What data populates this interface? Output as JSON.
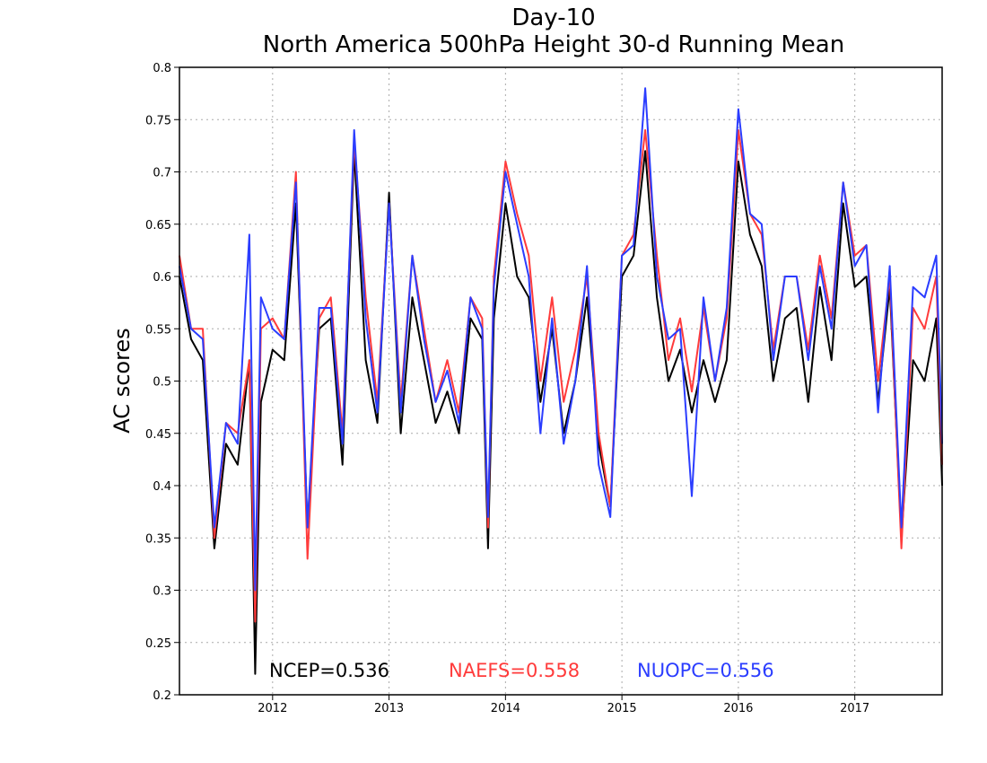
{
  "chart_data": {
    "type": "line",
    "title": "Day-10",
    "subtitle": "North America 500hPa Height 30-d Running Mean",
    "xlabel": "",
    "ylabel": "AC scores",
    "xlim": [
      2011.2,
      2017.75
    ],
    "ylim": [
      0.2,
      0.8
    ],
    "x_ticks": [
      2012,
      2013,
      2014,
      2015,
      2016,
      2017
    ],
    "x_tick_labels": [
      "2012",
      "2013",
      "2014",
      "2015",
      "2016",
      "2017"
    ],
    "y_ticks": [
      0.2,
      0.25,
      0.3,
      0.35,
      0.4,
      0.45,
      0.5,
      0.55,
      0.6,
      0.65,
      0.7,
      0.75,
      0.8
    ],
    "y_tick_labels": [
      "0.2",
      "0.25",
      "0.3",
      "0.35",
      "0.4",
      "0.45",
      "0.5",
      "0.55",
      "0.6",
      "0.65",
      "0.7",
      "0.75",
      "0.8"
    ],
    "grid": true,
    "x": [
      2011.2,
      2011.3,
      2011.4,
      2011.5,
      2011.6,
      2011.7,
      2011.8,
      2011.85,
      2011.9,
      2012.0,
      2012.1,
      2012.2,
      2012.3,
      2012.4,
      2012.5,
      2012.6,
      2012.7,
      2012.8,
      2012.9,
      2013.0,
      2013.1,
      2013.2,
      2013.3,
      2013.4,
      2013.5,
      2013.6,
      2013.7,
      2013.8,
      2013.85,
      2013.9,
      2014.0,
      2014.1,
      2014.2,
      2014.3,
      2014.4,
      2014.5,
      2014.6,
      2014.7,
      2014.8,
      2014.9,
      2015.0,
      2015.1,
      2015.2,
      2015.3,
      2015.4,
      2015.5,
      2015.6,
      2015.7,
      2015.8,
      2015.9,
      2016.0,
      2016.1,
      2016.2,
      2016.3,
      2016.4,
      2016.5,
      2016.6,
      2016.7,
      2016.8,
      2016.9,
      2017.0,
      2017.1,
      2017.2,
      2017.3,
      2017.4,
      2017.5,
      2017.6,
      2017.7,
      2017.75
    ],
    "series": [
      {
        "name": "NCEP",
        "color": "#000000",
        "values": [
          0.6,
          0.54,
          0.52,
          0.34,
          0.44,
          0.42,
          0.52,
          0.22,
          0.48,
          0.53,
          0.52,
          0.67,
          0.36,
          0.55,
          0.56,
          0.42,
          0.72,
          0.52,
          0.46,
          0.68,
          0.45,
          0.58,
          0.52,
          0.46,
          0.49,
          0.45,
          0.56,
          0.54,
          0.34,
          0.56,
          0.67,
          0.6,
          0.58,
          0.48,
          0.55,
          0.45,
          0.5,
          0.58,
          0.44,
          0.38,
          0.6,
          0.62,
          0.72,
          0.58,
          0.5,
          0.53,
          0.47,
          0.52,
          0.48,
          0.52,
          0.71,
          0.64,
          0.61,
          0.5,
          0.56,
          0.57,
          0.48,
          0.59,
          0.52,
          0.67,
          0.59,
          0.6,
          0.48,
          0.59,
          0.35,
          0.52,
          0.5,
          0.56,
          0.4
        ]
      },
      {
        "name": "NAEFS",
        "color": "#ff3b3b",
        "values": [
          0.62,
          0.55,
          0.55,
          0.35,
          0.46,
          0.45,
          0.52,
          0.27,
          0.55,
          0.56,
          0.54,
          0.7,
          0.33,
          0.56,
          0.58,
          0.45,
          0.73,
          0.58,
          0.48,
          0.67,
          0.48,
          0.62,
          0.55,
          0.48,
          0.52,
          0.47,
          0.58,
          0.56,
          0.36,
          0.6,
          0.71,
          0.66,
          0.62,
          0.5,
          0.58,
          0.48,
          0.53,
          0.6,
          0.45,
          0.38,
          0.62,
          0.64,
          0.74,
          0.62,
          0.52,
          0.56,
          0.49,
          0.57,
          0.5,
          0.56,
          0.74,
          0.66,
          0.64,
          0.53,
          0.6,
          0.6,
          0.53,
          0.62,
          0.56,
          0.69,
          0.62,
          0.63,
          0.5,
          0.6,
          0.34,
          0.57,
          0.55,
          0.6,
          0.42
        ]
      },
      {
        "name": "NUOPC",
        "color": "#2b3dff",
        "values": [
          0.61,
          0.55,
          0.54,
          0.36,
          0.46,
          0.44,
          0.64,
          0.3,
          0.58,
          0.55,
          0.54,
          0.69,
          0.36,
          0.57,
          0.57,
          0.44,
          0.74,
          0.56,
          0.47,
          0.67,
          0.47,
          0.62,
          0.54,
          0.48,
          0.51,
          0.46,
          0.58,
          0.55,
          0.37,
          0.59,
          0.7,
          0.65,
          0.6,
          0.45,
          0.56,
          0.44,
          0.5,
          0.61,
          0.42,
          0.37,
          0.62,
          0.63,
          0.78,
          0.6,
          0.54,
          0.55,
          0.39,
          0.58,
          0.5,
          0.57,
          0.76,
          0.66,
          0.65,
          0.52,
          0.6,
          0.6,
          0.52,
          0.61,
          0.55,
          0.69,
          0.61,
          0.63,
          0.47,
          0.61,
          0.36,
          0.59,
          0.58,
          0.62,
          0.44
        ]
      }
    ],
    "legend": {
      "placement": "bottom",
      "entries": [
        {
          "text": "NCEP=0.536",
          "color": "#000000"
        },
        {
          "text": "NAEFS=0.558",
          "color": "#ff3b3b"
        },
        {
          "text": "NUOPC=0.556",
          "color": "#2b3dff"
        }
      ]
    }
  }
}
